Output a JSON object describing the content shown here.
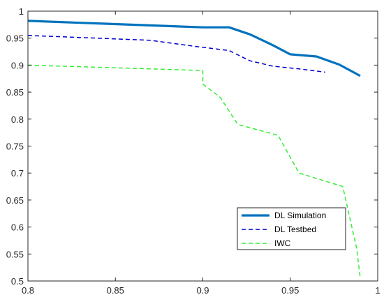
{
  "chart_data": {
    "type": "line",
    "title": "",
    "xlabel": "",
    "ylabel": "",
    "xlim": [
      0.8,
      1.0
    ],
    "ylim": [
      0.5,
      1.0
    ],
    "grid": false,
    "legend_placement": "bottom-right",
    "xticks": [
      "0.8",
      "0.85",
      "0.9",
      "0.95",
      "1"
    ],
    "yticks": [
      "0.5",
      "0.55",
      "0.6",
      "0.65",
      "0.7",
      "0.75",
      "0.8",
      "0.85",
      "0.9",
      "0.95",
      "1"
    ],
    "series": [
      {
        "name": "DL Simulation",
        "color": "#0072bd",
        "style": "solid-thick",
        "x": [
          0.8,
          0.9,
          0.915,
          0.927,
          0.94,
          0.95,
          0.965,
          0.978,
          0.99
        ],
        "y": [
          0.982,
          0.97,
          0.97,
          0.957,
          0.937,
          0.92,
          0.916,
          0.901,
          0.88
        ]
      },
      {
        "name": "DL Testbed",
        "color": "#0000cc",
        "style": "dashed",
        "x": [
          0.8,
          0.87,
          0.895,
          0.915,
          0.927,
          0.94,
          0.955,
          0.97
        ],
        "y": [
          0.955,
          0.946,
          0.935,
          0.927,
          0.908,
          0.898,
          0.893,
          0.887
        ]
      },
      {
        "name": "IWC",
        "color": "#33ee33",
        "style": "dashed",
        "x": [
          0.8,
          0.9,
          0.9,
          0.91,
          0.92,
          0.943,
          0.955,
          0.98,
          0.988,
          0.99
        ],
        "y": [
          0.9,
          0.89,
          0.865,
          0.84,
          0.79,
          0.77,
          0.7,
          0.675,
          0.56,
          0.505
        ]
      }
    ]
  }
}
